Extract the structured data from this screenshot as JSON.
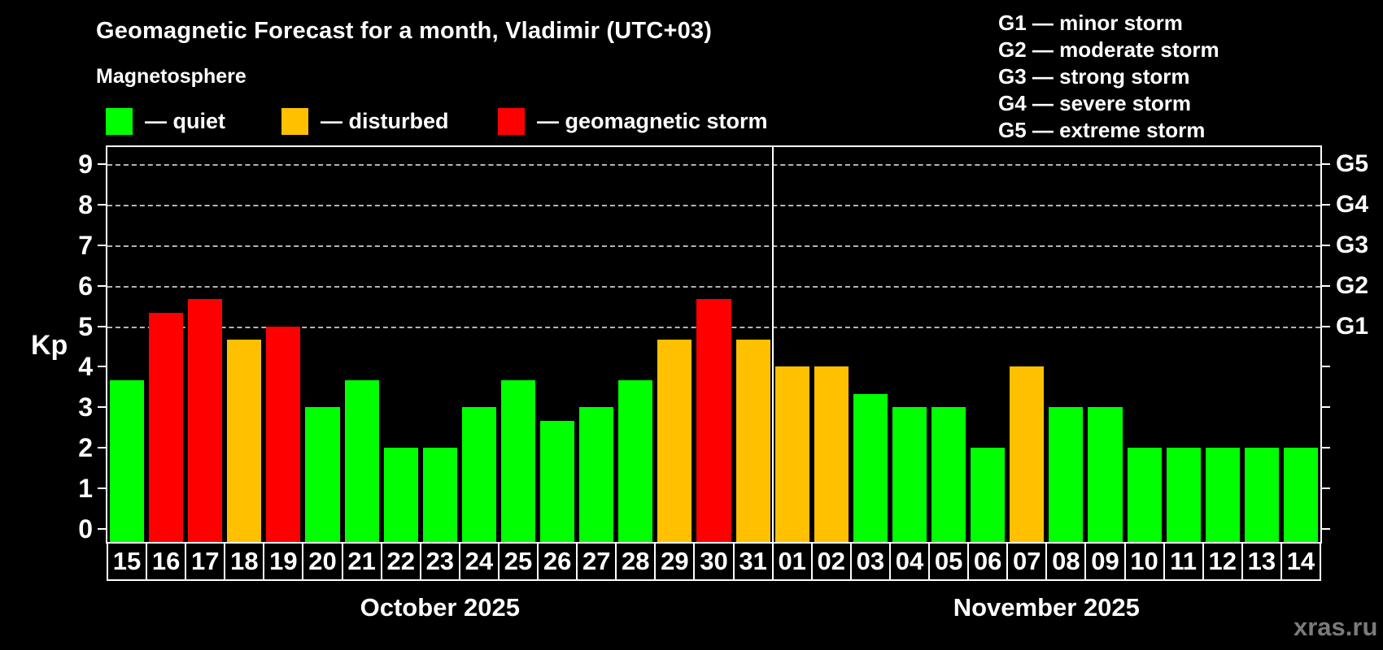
{
  "header": {
    "title": "Geomagnetic Forecast for a month, Vladimir (UTC+03)",
    "subtitle": "Magnetosphere"
  },
  "legend": {
    "items": [
      {
        "status": "quiet",
        "label": "— quiet"
      },
      {
        "status": "disturbed",
        "label": "— disturbed"
      },
      {
        "status": "storm",
        "label": "— geomagnetic storm"
      }
    ]
  },
  "g_legend": {
    "items": [
      "G1 — minor storm",
      "G2 — moderate storm",
      "G3 — strong storm",
      "G4 — severe storm",
      "G5 — extreme storm"
    ]
  },
  "colors": {
    "quiet": "#00ff00",
    "disturbed": "#ffc000",
    "storm": "#ff0000",
    "background": "#000000",
    "text": "#ffffff",
    "grid": "#b4b4b4",
    "watermark": "#7b7b7b"
  },
  "axis": {
    "kp_label": "Kp",
    "kp_ticks": [
      0,
      1,
      2,
      3,
      4,
      5,
      6,
      7,
      8,
      9
    ],
    "g_labels": [
      {
        "kp": 5,
        "label": "G1"
      },
      {
        "kp": 6,
        "label": "G2"
      },
      {
        "kp": 7,
        "label": "G3"
      },
      {
        "kp": 8,
        "label": "G4"
      },
      {
        "kp": 9,
        "label": "G5"
      }
    ]
  },
  "watermark": "xras.ru",
  "chart_data": {
    "type": "bar",
    "title": "Geomagnetic Forecast for a month, Vladimir (UTC+03)",
    "subtitle": "Magnetosphere",
    "xlabel": "",
    "ylabel": "Kp",
    "ylim": [
      0,
      9.4
    ],
    "grid": "horizontal dashed lines at Kp 5-9 only",
    "gridlines_kp": [
      5,
      6,
      7,
      8,
      9
    ],
    "legend_position": "top",
    "months": [
      {
        "label": "October 2025",
        "short": "oct",
        "days": 17
      },
      {
        "label": "November 2025",
        "short": "nov",
        "days": 14
      }
    ],
    "categories": [
      "15",
      "16",
      "17",
      "18",
      "19",
      "20",
      "21",
      "22",
      "23",
      "24",
      "25",
      "26",
      "27",
      "28",
      "29",
      "30",
      "31",
      "01",
      "02",
      "03",
      "04",
      "05",
      "06",
      "07",
      "08",
      "09",
      "10",
      "11",
      "12",
      "13",
      "14"
    ],
    "values": [
      3.67,
      5.33,
      5.67,
      4.67,
      5.0,
      3.0,
      3.67,
      2.0,
      2.0,
      3.0,
      3.67,
      2.67,
      3.0,
      3.67,
      4.67,
      5.67,
      4.67,
      4.0,
      4.0,
      3.33,
      3.0,
      3.0,
      2.0,
      4.0,
      3.0,
      3.0,
      2.0,
      2.0,
      2.0,
      2.0,
      2.0
    ],
    "statuses": [
      "quiet",
      "storm",
      "storm",
      "disturbed",
      "storm",
      "quiet",
      "quiet",
      "quiet",
      "quiet",
      "quiet",
      "quiet",
      "quiet",
      "quiet",
      "quiet",
      "disturbed",
      "storm",
      "disturbed",
      "disturbed",
      "disturbed",
      "quiet",
      "quiet",
      "quiet",
      "quiet",
      "disturbed",
      "quiet",
      "quiet",
      "quiet",
      "quiet",
      "quiet",
      "quiet",
      "quiet"
    ]
  }
}
